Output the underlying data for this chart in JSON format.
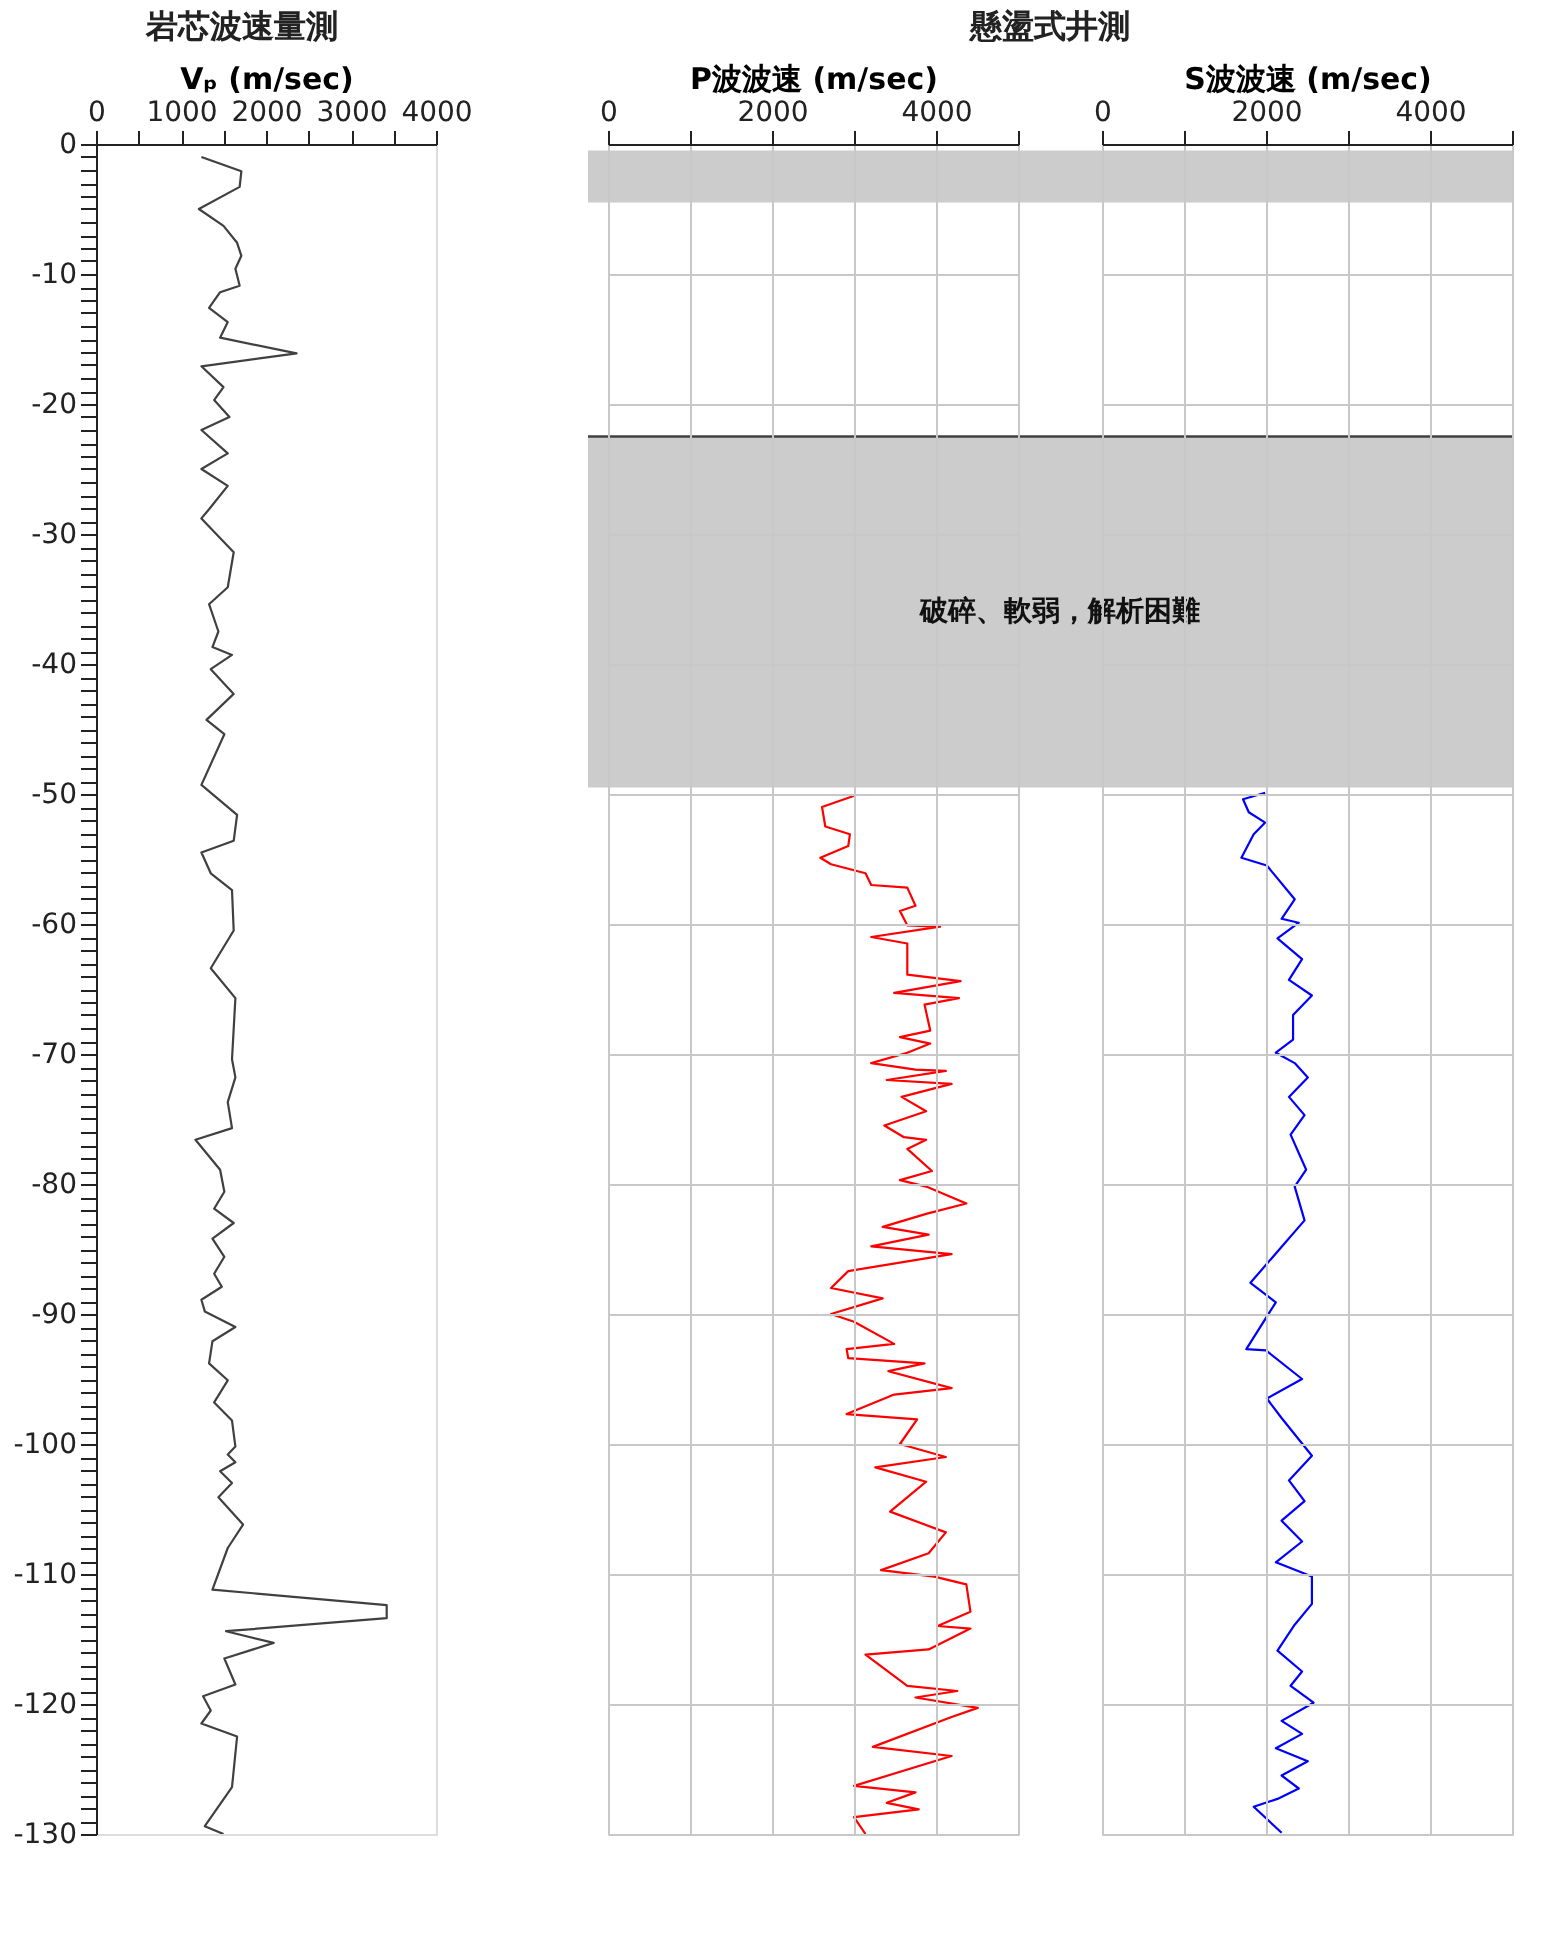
{
  "chart_data": [
    {
      "type": "line",
      "title": "岩芯波速量測",
      "xlabel": "Vₚ (m/sec)",
      "xlim": [
        0,
        4000
      ],
      "xticks": [
        0,
        {
          "value": 500,
          "label": null
        },
        1000,
        {
          "value": 1500,
          "label": null
        },
        2000,
        {
          "value": 2500,
          "label": null
        },
        3000,
        {
          "value": 3500,
          "label": null
        },
        4000
      ],
      "ylim": [
        -130,
        0
      ],
      "yticks": [
        0,
        {
          "value": -1,
          "label": null
        },
        {
          "value": -2,
          "label": null
        },
        {
          "value": -3,
          "label": null
        },
        {
          "value": -4,
          "label": null
        },
        {
          "value": -5,
          "label": null
        },
        {
          "value": -6,
          "label": null
        },
        {
          "value": -7,
          "label": null
        },
        {
          "value": -8,
          "label": null
        },
        {
          "value": -9,
          "label": null
        },
        -10,
        {
          "value": -11,
          "label": null
        },
        {
          "value": -12,
          "label": null
        },
        {
          "value": -13,
          "label": null
        },
        {
          "value": -14,
          "label": null
        },
        {
          "value": -15,
          "label": null
        },
        {
          "value": -16,
          "label": null
        },
        {
          "value": -17,
          "label": null
        },
        {
          "value": -18,
          "label": null
        },
        {
          "value": -19,
          "label": null
        },
        -20,
        {
          "value": -21,
          "label": null
        },
        {
          "value": -22,
          "label": null
        },
        {
          "value": -23,
          "label": null
        },
        {
          "value": -24,
          "label": null
        },
        {
          "value": -25,
          "label": null
        },
        {
          "value": -26,
          "label": null
        },
        {
          "value": -27,
          "label": null
        },
        {
          "value": -28,
          "label": null
        },
        {
          "value": -29,
          "label": null
        },
        -30,
        {
          "value": -31,
          "label": null
        },
        {
          "value": -32,
          "label": null
        },
        {
          "value": -33,
          "label": null
        },
        {
          "value": -34,
          "label": null
        },
        {
          "value": -35,
          "label": null
        },
        {
          "value": -36,
          "label": null
        },
        {
          "value": -37,
          "label": null
        },
        {
          "value": -38,
          "label": null
        },
        {
          "value": -39,
          "label": null
        },
        -40,
        {
          "value": -41,
          "label": null
        },
        {
          "value": -42,
          "label": null
        },
        {
          "value": -43,
          "label": null
        },
        {
          "value": -44,
          "label": null
        },
        {
          "value": -45,
          "label": null
        },
        {
          "value": -46,
          "label": null
        },
        {
          "value": -47,
          "label": null
        },
        {
          "value": -48,
          "label": null
        },
        {
          "value": -49,
          "label": null
        },
        -50,
        {
          "value": -51,
          "label": null
        },
        {
          "value": -52,
          "label": null
        },
        {
          "value": -53,
          "label": null
        },
        {
          "value": -54,
          "label": null
        },
        {
          "value": -55,
          "label": null
        },
        {
          "value": -56,
          "label": null
        },
        {
          "value": -57,
          "label": null
        },
        {
          "value": -58,
          "label": null
        },
        {
          "value": -59,
          "label": null
        },
        -60,
        {
          "value": -61,
          "label": null
        },
        {
          "value": -62,
          "label": null
        },
        {
          "value": -63,
          "label": null
        },
        {
          "value": -64,
          "label": null
        },
        {
          "value": -65,
          "label": null
        },
        {
          "value": -66,
          "label": null
        },
        {
          "value": -67,
          "label": null
        },
        {
          "value": -68,
          "label": null
        },
        {
          "value": -69,
          "label": null
        },
        -70,
        {
          "value": -71,
          "label": null
        },
        {
          "value": -72,
          "label": null
        },
        {
          "value": -73,
          "label": null
        },
        {
          "value": -74,
          "label": null
        },
        {
          "value": -75,
          "label": null
        },
        {
          "value": -76,
          "label": null
        },
        {
          "value": -77,
          "label": null
        },
        {
          "value": -78,
          "label": null
        },
        {
          "value": -79,
          "label": null
        },
        -80,
        {
          "value": -81,
          "label": null
        },
        {
          "value": -82,
          "label": null
        },
        {
          "value": -83,
          "label": null
        },
        {
          "value": -84,
          "label": null
        },
        {
          "value": -85,
          "label": null
        },
        {
          "value": -86,
          "label": null
        },
        {
          "value": -87,
          "label": null
        },
        {
          "value": -88,
          "label": null
        },
        {
          "value": -89,
          "label": null
        },
        -90,
        {
          "value": -91,
          "label": null
        },
        {
          "value": -92,
          "label": null
        },
        {
          "value": -93,
          "label": null
        },
        {
          "value": -94,
          "label": null
        },
        {
          "value": -95,
          "label": null
        },
        {
          "value": -96,
          "label": null
        },
        {
          "value": -97,
          "label": null
        },
        {
          "value": -98,
          "label": null
        },
        {
          "value": -99,
          "label": null
        },
        -100,
        {
          "value": -101,
          "label": null
        },
        {
          "value": -102,
          "label": null
        },
        {
          "value": -103,
          "label": null
        },
        {
          "value": -104,
          "label": null
        },
        {
          "value": -105,
          "label": null
        },
        {
          "value": -106,
          "label": null
        },
        {
          "value": -107,
          "label": null
        },
        {
          "value": -108,
          "label": null
        },
        {
          "value": -109,
          "label": null
        },
        -110,
        {
          "value": -111,
          "label": null
        },
        {
          "value": -112,
          "label": null
        },
        {
          "value": -113,
          "label": null
        },
        {
          "value": -114,
          "label": null
        },
        {
          "value": -115,
          "label": null
        },
        {
          "value": -116,
          "label": null
        },
        {
          "value": -117,
          "label": null
        },
        {
          "value": -118,
          "label": null
        },
        {
          "value": -119,
          "label": null
        },
        -120,
        {
          "value": -121,
          "label": null
        },
        {
          "value": -122,
          "label": null
        },
        {
          "value": -123,
          "label": null
        },
        {
          "value": -124,
          "label": null
        },
        {
          "value": -125,
          "label": null
        },
        {
          "value": -126,
          "label": null
        },
        {
          "value": -127,
          "label": null
        },
        {
          "value": -128,
          "label": null
        },
        {
          "value": -129,
          "label": null
        },
        -130
      ],
      "grid": false,
      "series": [
        {
          "color": "#404040",
          "x": [
            1240,
            1710,
            1690,
            1210,
            1500,
            1660,
            1710,
            1640,
            1690,
            1460,
            1330,
            1550,
            1460,
            2360,
            1240,
            1500,
            1390,
            1570,
            1240,
            1550,
            1240,
            1550,
            1330,
            1240,
            1620,
            1550,
            1330,
            1440,
            1370,
            1600,
            1350,
            1620,
            1300,
            1510,
            1240,
            1660,
            1620,
            1240,
            1350,
            1600,
            1620,
            1350,
            1640,
            1600,
            1640,
            1550,
            1600,
            1170,
            1460,
            1510,
            1390,
            1620,
            1370,
            1510,
            1390,
            1480,
            1240,
            1280,
            1640,
            1370,
            1330,
            1550,
            1390,
            1600,
            1640,
            1550,
            1640,
            1460,
            1600,
            1440,
            1730,
            1550,
            1370,
            3420,
            3420,
            1530,
            2090,
            1510,
            1640,
            1260,
            1350,
            1240,
            1660,
            1600,
            1280,
            1500
          ],
          "values": [
            -1.0,
            -2.1,
            -3.3,
            -5.0,
            -6.3,
            -7.6,
            -8.6,
            -9.6,
            -10.9,
            -11.4,
            -12.6,
            -13.7,
            -14.9,
            -16.1,
            -17.1,
            -18.7,
            -19.7,
            -21.0,
            -22.0,
            -23.8,
            -25.0,
            -26.3,
            -28.1,
            -28.8,
            -31.4,
            -34.1,
            -35.4,
            -37.5,
            -38.7,
            -39.3,
            -40.4,
            -42.3,
            -44.3,
            -45.4,
            -49.3,
            -51.6,
            -53.6,
            -54.5,
            -56.1,
            -57.4,
            -60.5,
            -63.4,
            -65.7,
            -70.4,
            -71.8,
            -73.7,
            -75.7,
            -76.6,
            -78.9,
            -80.6,
            -81.9,
            -83.0,
            -84.2,
            -85.6,
            -86.9,
            -87.9,
            -88.9,
            -89.8,
            -91.0,
            -92.1,
            -93.8,
            -95.1,
            -96.8,
            -98.2,
            -100.2,
            -100.8,
            -101.4,
            -102.1,
            -103.0,
            -104.1,
            -106.2,
            -108.0,
            -111.2,
            -112.4,
            -113.4,
            -114.4,
            -115.3,
            -116.5,
            -118.5,
            -119.4,
            -120.5,
            -121.5,
            -122.5,
            -126.4,
            -129.4,
            -130.0
          ]
        }
      ]
    },
    {
      "type": "line",
      "xlabel": "P波波速 (m/sec)",
      "xlim": [
        0,
        5000
      ],
      "xticks": [
        0,
        {
          "value": 1000,
          "label": null
        },
        2000,
        {
          "value": 3000,
          "label": null
        },
        4000,
        {
          "value": 5000,
          "label": null
        }
      ],
      "ylim": [
        -130,
        0
      ],
      "yticks": [
        0,
        -10,
        -20,
        -30,
        -40,
        -50,
        -60,
        -70,
        -80,
        -90,
        -100,
        -110,
        -120,
        -130
      ],
      "tick_labels": "x",
      "grid": true,
      "bands": [
        {
          "axis": "y",
          "from": -0.5,
          "to": -4.5,
          "color": "#cccccc"
        },
        {
          "axis": "y",
          "from": -22.5,
          "to": -49.5,
          "color": "#cccccc"
        }
      ],
      "ref_lines": [
        {
          "axis": "y",
          "value": -22.5,
          "color": "#404040"
        }
      ],
      "series": [
        {
          "color": "#ff0000",
          "x": [
            3020,
            2610,
            2650,
            2950,
            2930,
            2590,
            2720,
            3140,
            3210,
            3650,
            3750,
            3560,
            3650,
            4050,
            3210,
            3650,
            3650,
            4300,
            3490,
            4280,
            3860,
            3930,
            3560,
            3930,
            3650,
            3210,
            3750,
            4120,
            3400,
            4190,
            3580,
            3880,
            3370,
            3610,
            3880,
            3650,
            3950,
            3560,
            3880,
            4370,
            3880,
            3350,
            3910,
            3210,
            4190,
            2930,
            2720,
            3350,
            2720,
            3000,
            3490,
            2910,
            2930,
            3860,
            3420,
            4190,
            3490,
            2910,
            3770,
            3560,
            4120,
            3260,
            3880,
            3440,
            4120,
            3910,
            3330,
            3980,
            4370,
            4420,
            4020,
            4420,
            3910,
            3140,
            3650,
            4260,
            3750,
            4510,
            4190,
            3230,
            4190,
            3000,
            3750,
            3400,
            3790,
            3000,
            3140
          ],
          "values": [
            -50.1,
            -51.0,
            -52.5,
            -53.1,
            -54.0,
            -54.9,
            -55.4,
            -56.1,
            -57.0,
            -57.2,
            -58.6,
            -59.0,
            -60.1,
            -60.2,
            -61.0,
            -61.5,
            -63.9,
            -64.4,
            -65.3,
            -65.7,
            -66.2,
            -68.2,
            -68.7,
            -69.2,
            -69.9,
            -70.7,
            -71.2,
            -71.3,
            -72.0,
            -72.3,
            -73.3,
            -74.4,
            -75.5,
            -76.4,
            -76.6,
            -77.3,
            -79.0,
            -79.7,
            -80.2,
            -81.5,
            -82.3,
            -83.3,
            -83.9,
            -84.8,
            -85.4,
            -86.7,
            -88.0,
            -88.8,
            -90.0,
            -90.6,
            -92.3,
            -92.7,
            -93.4,
            -93.8,
            -94.4,
            -95.7,
            -96.2,
            -97.7,
            -98.1,
            -100.0,
            -101.0,
            -101.8,
            -102.9,
            -105.2,
            -106.8,
            -108.4,
            -109.7,
            -110.2,
            -110.8,
            -112.9,
            -114.0,
            -114.2,
            -115.8,
            -116.2,
            -118.6,
            -119.0,
            -119.5,
            -120.3,
            -121.0,
            -123.3,
            -124.0,
            -126.3,
            -126.8,
            -127.6,
            -128.1,
            -128.7,
            -130.0
          ]
        }
      ]
    },
    {
      "type": "line",
      "title": "懸盪式井測",
      "xlabel": "S波波速 (m/sec)",
      "xlim": [
        0,
        5000
      ],
      "xticks": [
        0,
        {
          "value": 1000,
          "label": null
        },
        2000,
        {
          "value": 3000,
          "label": null
        },
        4000,
        {
          "value": 5000,
          "label": null
        }
      ],
      "ylim": [
        -130,
        0
      ],
      "yticks": [
        0,
        -10,
        -20,
        -30,
        -40,
        -50,
        -60,
        -70,
        -80,
        -90,
        -100,
        -110,
        -120,
        -130
      ],
      "tick_labels": "x",
      "grid": true,
      "bands": [
        {
          "axis": "y",
          "from": -0.5,
          "to": -4.5,
          "color": "#cccccc"
        },
        {
          "axis": "y",
          "from": -22.5,
          "to": -49.5,
          "color": "#cccccc"
        }
      ],
      "ref_lines": [
        {
          "axis": "y",
          "value": -22.5,
          "color": "#404040"
        }
      ],
      "annotations": [
        "破碎、軟弱，解析困難"
      ],
      "series": [
        {
          "color": "#0000ff",
          "x": [
            1990,
            1720,
            1790,
            1990,
            1850,
            1700,
            2010,
            2350,
            2190,
            2400,
            2140,
            2440,
            2280,
            2560,
            2330,
            2330,
            2120,
            2350,
            2510,
            2280,
            2470,
            2300,
            2490,
            2350,
            2470,
            1810,
            2120,
            1760,
            2000,
            2440,
            2010,
            2190,
            2560,
            2280,
            2470,
            2190,
            2440,
            2120,
            2560,
            2560,
            2350,
            2140,
            2440,
            2300,
            2580,
            2190,
            2440,
            2120,
            2510,
            2190,
            2400,
            2140,
            1850,
            2190
          ],
          "values": [
            -49.9,
            -50.4,
            -51.4,
            -52.2,
            -53.1,
            -54.9,
            -55.5,
            -58.1,
            -59.6,
            -59.9,
            -61.1,
            -62.7,
            -64.3,
            -65.5,
            -67.0,
            -68.9,
            -69.9,
            -70.7,
            -71.8,
            -73.3,
            -74.7,
            -76.2,
            -78.9,
            -80.2,
            -82.8,
            -87.6,
            -89.1,
            -92.7,
            -92.8,
            -95.0,
            -96.5,
            -98.0,
            -100.9,
            -102.8,
            -104.4,
            -105.9,
            -107.5,
            -109.1,
            -110.2,
            -112.3,
            -113.9,
            -115.9,
            -117.5,
            -118.6,
            -119.9,
            -121.3,
            -122.3,
            -123.4,
            -124.4,
            -125.5,
            -126.5,
            -127.3,
            -127.9,
            -129.9
          ]
        }
      ]
    }
  ]
}
